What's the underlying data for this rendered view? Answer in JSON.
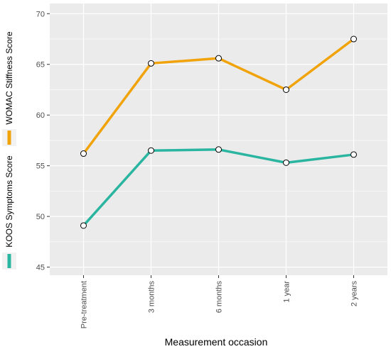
{
  "chart_data": {
    "type": "line",
    "categories": [
      "Pre-treatment",
      "3 months",
      "6 months",
      "1 year",
      "2 years"
    ],
    "series": [
      {
        "name": "WOMAC Stiffness Score",
        "color": "#f0a30a",
        "values": [
          56.2,
          65.1,
          65.6,
          62.5,
          67.5
        ]
      },
      {
        "name": "KOOS Symptoms Score",
        "color": "#2ab5a0",
        "values": [
          49.1,
          56.5,
          56.6,
          55.3,
          56.1
        ]
      }
    ],
    "xlabel": "Measurement occasion",
    "ylabel": "",
    "ylim": [
      44.2,
      71.0
    ],
    "yticks": [
      45,
      50,
      55,
      60,
      65,
      70
    ],
    "grid": true,
    "legend_position": "left",
    "panel_background": "#ebebeb",
    "grid_color": "#ffffff"
  }
}
